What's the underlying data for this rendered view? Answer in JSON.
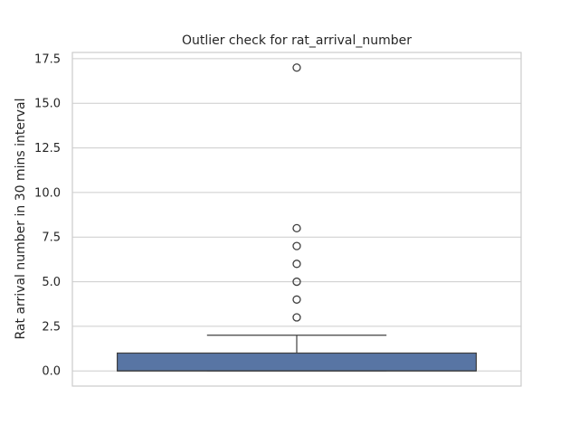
{
  "chart_data": {
    "type": "boxplot",
    "title": "Outlier check for rat_arrival_number",
    "ylabel": "Rat arrival number in 30 mins interval",
    "xlabel": "",
    "ylim": [
      -0.85,
      17.85
    ],
    "yticks": [
      0.0,
      2.5,
      5.0,
      7.5,
      10.0,
      12.5,
      15.0,
      17.5
    ],
    "ytick_labels": [
      "0.0",
      "2.5",
      "5.0",
      "7.5",
      "10.0",
      "12.5",
      "15.0",
      "17.5"
    ],
    "grid": true,
    "box": {
      "min": 0,
      "q1": 0,
      "median": 0,
      "q3": 1,
      "whisker_low": 0,
      "whisker_high": 2,
      "color": "#5875a4"
    },
    "outliers": [
      3,
      4,
      5,
      6,
      7,
      8,
      17
    ]
  }
}
